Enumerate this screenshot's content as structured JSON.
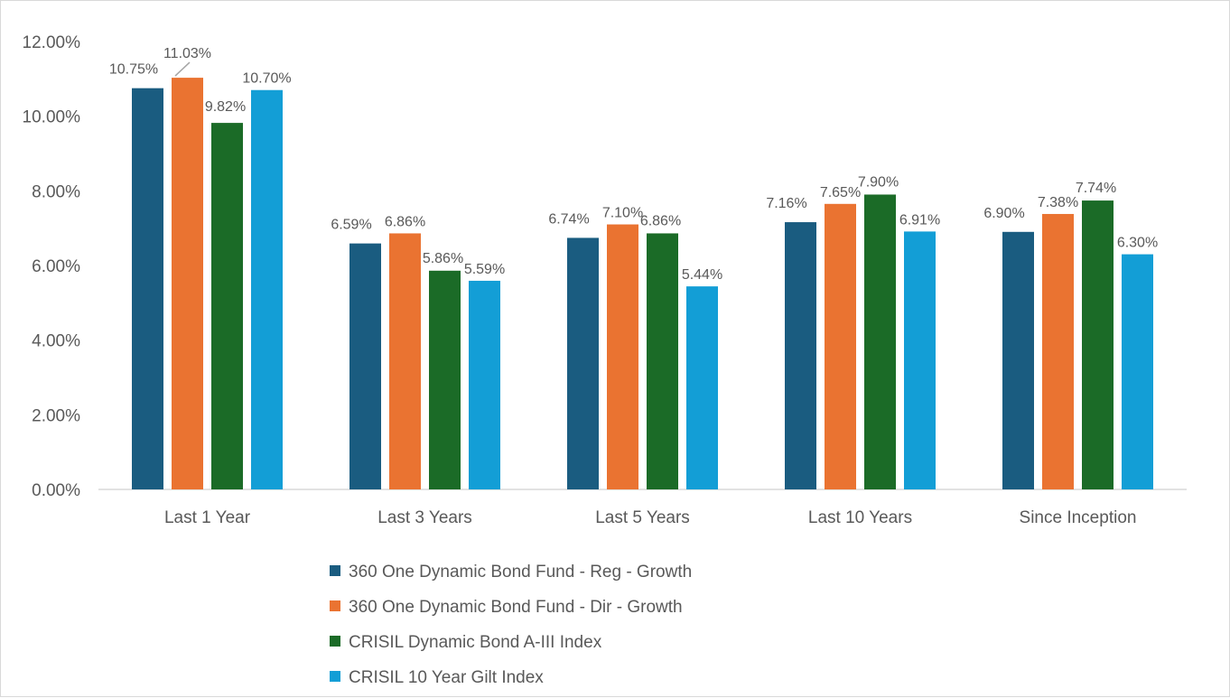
{
  "chart_data": {
    "type": "bar",
    "categories": [
      "Last 1 Year",
      "Last 3 Years",
      "Last 5 Years",
      "Last 10 Years",
      "Since Inception"
    ],
    "series": [
      {
        "name": "360 One Dynamic Bond Fund - Reg - Growth",
        "color": "#1a5c80",
        "values": [
          10.75,
          6.59,
          6.74,
          7.16,
          6.9
        ],
        "labels": [
          "10.75%",
          "6.59%",
          "6.74%",
          "7.16%",
          "6.90%"
        ]
      },
      {
        "name": "360 One Dynamic Bond Fund - Dir - Growth",
        "color": "#ea7331",
        "values": [
          11.03,
          6.86,
          7.1,
          7.65,
          7.38
        ],
        "labels": [
          "11.03%",
          "6.86%",
          "7.10%",
          "7.65%",
          "7.38%"
        ]
      },
      {
        "name": "CRISIL Dynamic Bond A-III Index",
        "color": "#1b6b27",
        "values": [
          9.82,
          5.86,
          6.86,
          7.9,
          7.74
        ],
        "labels": [
          "9.82%",
          "5.86%",
          "6.86%",
          "7.90%",
          "7.74%"
        ]
      },
      {
        "name": "CRISIL 10 Year Gilt Index",
        "color": "#139ed6",
        "values": [
          10.7,
          5.59,
          5.44,
          6.91,
          6.3
        ],
        "labels": [
          "10.70%",
          "5.59%",
          "5.44%",
          "6.91%",
          "6.30%"
        ]
      }
    ],
    "yticks": [
      "0.00%",
      "2.00%",
      "4.00%",
      "6.00%",
      "8.00%",
      "10.00%",
      "12.00%"
    ],
    "ylim": [
      0,
      12
    ],
    "grid": false,
    "legend": "bottom",
    "title": "",
    "xlabel": "",
    "ylabel": ""
  }
}
